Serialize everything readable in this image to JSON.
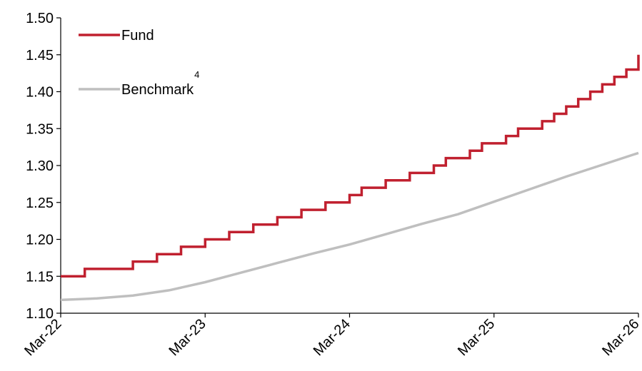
{
  "chart_data": {
    "type": "line",
    "title": "",
    "xlabel": "",
    "ylabel": "",
    "x_ticks": [
      "Mar-22",
      "Mar-23",
      "Mar-24",
      "Mar-25",
      "Mar-26"
    ],
    "x_range": [
      "2022-03",
      "2026-03"
    ],
    "ylim": [
      1.1,
      1.5
    ],
    "y_ticks": [
      "1.10",
      "1.15",
      "1.20",
      "1.25",
      "1.30",
      "1.35",
      "1.40",
      "1.45",
      "1.50"
    ],
    "grid": false,
    "legend_position": "top-left",
    "series": [
      {
        "name": "Fund",
        "superscript": "",
        "color": "#C0202F",
        "shape": "step",
        "points": [
          [
            "2022-03",
            1.15
          ],
          [
            "2022-04",
            1.15
          ],
          [
            "2022-05",
            1.16
          ],
          [
            "2022-06",
            1.16
          ],
          [
            "2022-07",
            1.16
          ],
          [
            "2022-08",
            1.16
          ],
          [
            "2022-09",
            1.17
          ],
          [
            "2022-10",
            1.17
          ],
          [
            "2022-11",
            1.18
          ],
          [
            "2022-12",
            1.18
          ],
          [
            "2023-01",
            1.19
          ],
          [
            "2023-02",
            1.19
          ],
          [
            "2023-03",
            1.2
          ],
          [
            "2023-04",
            1.2
          ],
          [
            "2023-05",
            1.21
          ],
          [
            "2023-06",
            1.21
          ],
          [
            "2023-07",
            1.22
          ],
          [
            "2023-08",
            1.22
          ],
          [
            "2023-09",
            1.23
          ],
          [
            "2023-10",
            1.23
          ],
          [
            "2023-11",
            1.24
          ],
          [
            "2023-12",
            1.24
          ],
          [
            "2024-01",
            1.25
          ],
          [
            "2024-02",
            1.25
          ],
          [
            "2024-03",
            1.26
          ],
          [
            "2024-04",
            1.27
          ],
          [
            "2024-05",
            1.27
          ],
          [
            "2024-06",
            1.28
          ],
          [
            "2024-07",
            1.28
          ],
          [
            "2024-08",
            1.29
          ],
          [
            "2024-09",
            1.29
          ],
          [
            "2024-10",
            1.3
          ],
          [
            "2024-11",
            1.31
          ],
          [
            "2024-12",
            1.31
          ],
          [
            "2025-01",
            1.32
          ],
          [
            "2025-02",
            1.33
          ],
          [
            "2025-03",
            1.33
          ],
          [
            "2025-04",
            1.34
          ],
          [
            "2025-05",
            1.35
          ],
          [
            "2025-06",
            1.35
          ],
          [
            "2025-07",
            1.36
          ],
          [
            "2025-08",
            1.37
          ],
          [
            "2025-09",
            1.38
          ],
          [
            "2025-10",
            1.39
          ],
          [
            "2025-11",
            1.4
          ],
          [
            "2025-12",
            1.41
          ],
          [
            "2026-01",
            1.42
          ],
          [
            "2026-02",
            1.43
          ],
          [
            "2026-03",
            1.45
          ]
        ]
      },
      {
        "name": "Benchmark",
        "superscript": "4",
        "color": "#BFBFBF",
        "shape": "line",
        "points": [
          [
            "2022-03",
            1.118
          ],
          [
            "2022-06",
            1.12
          ],
          [
            "2022-09",
            1.124
          ],
          [
            "2022-12",
            1.131
          ],
          [
            "2023-03",
            1.142
          ],
          [
            "2023-06",
            1.155
          ],
          [
            "2023-09",
            1.168
          ],
          [
            "2023-12",
            1.181
          ],
          [
            "2024-03",
            1.193
          ],
          [
            "2024-06",
            1.207
          ],
          [
            "2024-09",
            1.221
          ],
          [
            "2024-12",
            1.234
          ],
          [
            "2025-03",
            1.251
          ],
          [
            "2025-06",
            1.268
          ],
          [
            "2025-09",
            1.285
          ],
          [
            "2025-12",
            1.301
          ],
          [
            "2026-03",
            1.317
          ]
        ]
      }
    ]
  }
}
